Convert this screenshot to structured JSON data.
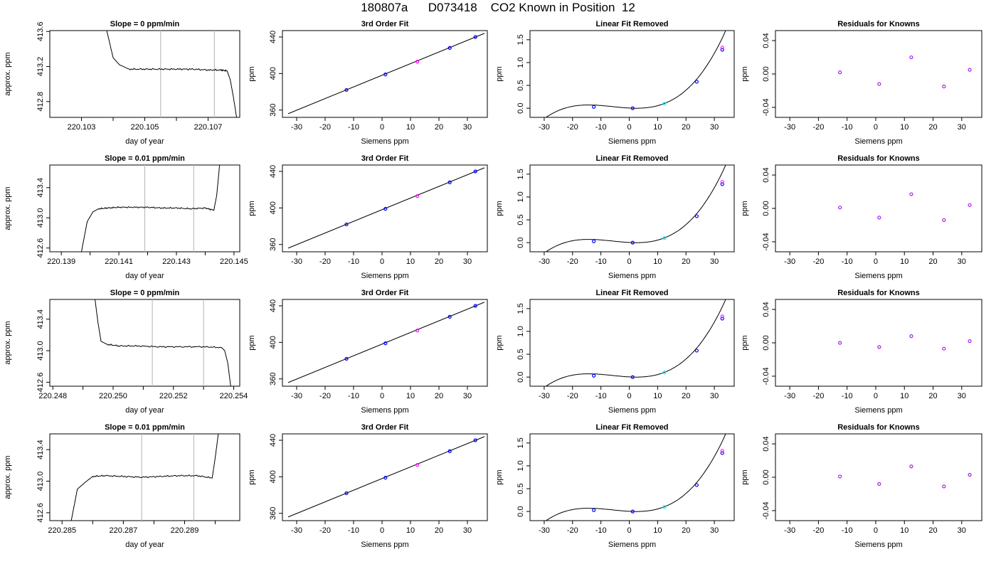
{
  "page": {
    "title": "180807a      D073418    CO2 Known in Position  12"
  },
  "colors": {
    "curve": "#000000",
    "guide": "#bebebe",
    "mark_blue": "#0000ff",
    "mark_magenta": "#ff00ff",
    "mark_cyan": "#00ffff",
    "mark_purple": "#a020f0"
  },
  "chart_data": [
    {
      "type": "line",
      "title": "Slope =  0  ppm/min",
      "xlabel": "day of year",
      "ylabel": "approx. ppm",
      "xlim": [
        220.102,
        220.108
      ],
      "ylim": [
        412.62,
        413.61
      ],
      "xticks": [
        "220.103",
        "220.105",
        "220.107"
      ],
      "xtick_minor": [
        220.104,
        220.106
      ],
      "yticks": [
        "412.8",
        "413.2",
        "413.6"
      ],
      "ytick_values": [
        412.8,
        413.2,
        413.6
      ],
      "guides": [
        220.1055,
        220.1072
      ],
      "x": [
        220.1038,
        220.104,
        220.1042,
        220.1045,
        220.105,
        220.1055,
        220.106,
        220.1065,
        220.107,
        220.1074,
        220.1076,
        220.1077,
        220.1078,
        220.1079
      ],
      "y": [
        413.61,
        413.3,
        413.22,
        413.17,
        413.17,
        413.17,
        413.17,
        413.17,
        413.16,
        413.16,
        413.15,
        413.05,
        412.85,
        412.62
      ]
    },
    {
      "type": "line",
      "title": "3rd Order Fit",
      "xlabel": "Siemens ppm",
      "ylabel": "ppm",
      "xlim": [
        -35,
        37
      ],
      "ylim": [
        352,
        447
      ],
      "xticks": [
        "-30",
        "-20",
        "-10",
        "0",
        "10",
        "20",
        "30"
      ],
      "xtick_values": [
        -30,
        -20,
        -10,
        0,
        10,
        20,
        30
      ],
      "yticks": [
        "360",
        "400",
        "440"
      ],
      "ytick_values": [
        360,
        400,
        440
      ],
      "fit_x": [
        -33,
        36
      ],
      "fit_y": [
        356,
        444
      ],
      "x": [
        -12.5,
        1.2,
        12.4,
        23.8,
        32.8
      ],
      "y": [
        382,
        399,
        413,
        428,
        440
      ]
    },
    {
      "type": "scatter",
      "title": "Linear Fit Removed",
      "xlabel": "Siemens ppm",
      "ylabel": "ppm",
      "xlim": [
        -35,
        37
      ],
      "ylim": [
        -0.2,
        1.7
      ],
      "xticks": [
        "-30",
        "-20",
        "-10",
        "0",
        "10",
        "20",
        "30"
      ],
      "xtick_values": [
        -30,
        -20,
        -10,
        0,
        10,
        20,
        30
      ],
      "yticks": [
        "0.0",
        "0.5",
        "1.0",
        "1.5"
      ],
      "ytick_values": [
        0,
        0.5,
        1.0,
        1.5
      ],
      "x": [
        -12.5,
        1.2,
        12.4,
        23.8,
        32.8
      ],
      "y": [
        0.03,
        0.0,
        0.1,
        0.58,
        1.28
      ]
    },
    {
      "type": "scatter",
      "title": "Residuals for Knowns",
      "xlabel": "Siemens ppm",
      "ylabel": "ppm",
      "xlim": [
        -35,
        37
      ],
      "ylim": [
        -0.052,
        0.052
      ],
      "xticks": [
        "-30",
        "-20",
        "-10",
        "0",
        "10",
        "20",
        "30"
      ],
      "xtick_values": [
        -30,
        -20,
        -10,
        0,
        10,
        20,
        30
      ],
      "yticks": [
        "-0.04",
        "0.00",
        "0.04"
      ],
      "ytick_values": [
        -0.04,
        0.0,
        0.04
      ],
      "x": [
        -12.5,
        1.2,
        12.4,
        23.8,
        32.8
      ],
      "y": [
        0.002,
        -0.012,
        0.02,
        -0.015,
        0.005
      ]
    },
    {
      "type": "line",
      "title": "Slope =  0.01  ppm/min",
      "xlabel": "day of year",
      "ylabel": "approx. ppm",
      "xlim": [
        220.1386,
        220.1452
      ],
      "ylim": [
        412.55,
        413.7
      ],
      "xticks": [
        "220.139",
        "220.141",
        "220.143",
        "220.145"
      ],
      "xtick_minor": [
        220.14,
        220.142,
        220.144
      ],
      "yticks": [
        "412.6",
        "413.0",
        "413.4"
      ],
      "ytick_values": [
        412.6,
        413.0,
        413.4
      ],
      "guides": [
        220.1419,
        220.1436
      ],
      "x": [
        220.1397,
        220.1399,
        220.1401,
        220.1403,
        220.1406,
        220.141,
        220.1415,
        220.142,
        220.1425,
        220.143,
        220.1435,
        220.144,
        220.1443,
        220.1444,
        220.1445
      ],
      "y": [
        412.55,
        412.95,
        413.08,
        413.12,
        413.13,
        413.14,
        413.14,
        413.14,
        413.13,
        413.13,
        413.12,
        413.13,
        413.1,
        413.3,
        413.7
      ]
    },
    {
      "type": "line",
      "title": "3rd Order Fit",
      "xlabel": "Siemens ppm",
      "ylabel": "ppm",
      "xlim": [
        -35,
        37
      ],
      "ylim": [
        352,
        447
      ],
      "xticks": [
        "-30",
        "-20",
        "-10",
        "0",
        "10",
        "20",
        "30"
      ],
      "xtick_values": [
        -30,
        -20,
        -10,
        0,
        10,
        20,
        30
      ],
      "yticks": [
        "360",
        "400",
        "440"
      ],
      "ytick_values": [
        360,
        400,
        440
      ],
      "fit_x": [
        -33,
        36
      ],
      "fit_y": [
        356,
        444
      ],
      "x": [
        -12.5,
        1.2,
        12.4,
        23.8,
        32.8
      ],
      "y": [
        382,
        399,
        413,
        428,
        440
      ]
    },
    {
      "type": "scatter",
      "title": "Linear Fit Removed",
      "xlabel": "Siemens ppm",
      "ylabel": "ppm",
      "xlim": [
        -35,
        37
      ],
      "ylim": [
        -0.2,
        1.7
      ],
      "xticks": [
        "-30",
        "-20",
        "-10",
        "0",
        "10",
        "20",
        "30"
      ],
      "xtick_values": [
        -30,
        -20,
        -10,
        0,
        10,
        20,
        30
      ],
      "yticks": [
        "0.0",
        "0.5",
        "1.0",
        "1.5"
      ],
      "ytick_values": [
        0,
        0.5,
        1.0,
        1.5
      ],
      "x": [
        -12.5,
        1.2,
        12.4,
        23.8,
        32.8
      ],
      "y": [
        0.03,
        0.0,
        0.1,
        0.58,
        1.28
      ]
    },
    {
      "type": "scatter",
      "title": "Residuals for Knowns",
      "xlabel": "Siemens ppm",
      "ylabel": "ppm",
      "xlim": [
        -35,
        37
      ],
      "ylim": [
        -0.052,
        0.052
      ],
      "xticks": [
        "-30",
        "-20",
        "-10",
        "0",
        "10",
        "20",
        "30"
      ],
      "xtick_values": [
        -30,
        -20,
        -10,
        0,
        10,
        20,
        30
      ],
      "yticks": [
        "-0.04",
        "0.00",
        "0.04"
      ],
      "ytick_values": [
        -0.04,
        0.0,
        0.04
      ],
      "x": [
        -12.5,
        1.2,
        12.4,
        23.8,
        32.8
      ],
      "y": [
        0.001,
        -0.011,
        0.017,
        -0.014,
        0.004
      ]
    },
    {
      "type": "line",
      "title": "Slope =  0  ppm/min",
      "xlabel": "day of year",
      "ylabel": "approx. ppm",
      "xlim": [
        220.2479,
        220.2542
      ],
      "ylim": [
        412.55,
        413.65
      ],
      "xticks": [
        "220.248",
        "220.250",
        "220.252",
        "220.254"
      ],
      "xtick_minor": [
        220.249,
        220.251,
        220.253
      ],
      "yticks": [
        "412.6",
        "413.0",
        "413.4"
      ],
      "ytick_values": [
        412.6,
        413.0,
        413.4
      ],
      "guides": [
        220.2513,
        220.253
      ],
      "x": [
        220.2494,
        220.2495,
        220.2496,
        220.2498,
        220.2502,
        220.2508,
        220.2515,
        220.2522,
        220.253,
        220.2536,
        220.2537,
        220.2538,
        220.2539
      ],
      "y": [
        413.65,
        413.35,
        413.12,
        413.08,
        413.06,
        413.06,
        413.05,
        413.05,
        413.05,
        413.04,
        413.0,
        412.85,
        412.55
      ]
    },
    {
      "type": "line",
      "title": "3rd Order Fit",
      "xlabel": "Siemens ppm",
      "ylabel": "ppm",
      "xlim": [
        -35,
        37
      ],
      "ylim": [
        352,
        447
      ],
      "xticks": [
        "-30",
        "-20",
        "-10",
        "0",
        "10",
        "20",
        "30"
      ],
      "xtick_values": [
        -30,
        -20,
        -10,
        0,
        10,
        20,
        30
      ],
      "yticks": [
        "360",
        "400",
        "440"
      ],
      "ytick_values": [
        360,
        400,
        440
      ],
      "fit_x": [
        -33,
        36
      ],
      "fit_y": [
        356,
        444
      ],
      "x": [
        -12.5,
        1.2,
        12.4,
        23.8,
        32.8
      ],
      "y": [
        382,
        399,
        413,
        428,
        440
      ]
    },
    {
      "type": "scatter",
      "title": "Linear Fit Removed",
      "xlabel": "Siemens ppm",
      "ylabel": "ppm",
      "xlim": [
        -35,
        37
      ],
      "ylim": [
        -0.2,
        1.7
      ],
      "xticks": [
        "-30",
        "-20",
        "-10",
        "0",
        "10",
        "20",
        "30"
      ],
      "xtick_values": [
        -30,
        -20,
        -10,
        0,
        10,
        20,
        30
      ],
      "yticks": [
        "0.0",
        "0.5",
        "1.0",
        "1.5"
      ],
      "ytick_values": [
        0,
        0.5,
        1.0,
        1.5
      ],
      "x": [
        -12.5,
        1.2,
        12.4,
        23.8,
        32.8
      ],
      "y": [
        0.03,
        0.0,
        0.1,
        0.58,
        1.28
      ]
    },
    {
      "type": "scatter",
      "title": "Residuals for Knowns",
      "xlabel": "Siemens ppm",
      "ylabel": "ppm",
      "xlim": [
        -35,
        37
      ],
      "ylim": [
        -0.052,
        0.052
      ],
      "xticks": [
        "-30",
        "-20",
        "-10",
        "0",
        "10",
        "20",
        "30"
      ],
      "xtick_values": [
        -30,
        -20,
        -10,
        0,
        10,
        20,
        30
      ],
      "yticks": [
        "-0.04",
        "0.00",
        "0.04"
      ],
      "ytick_values": [
        -0.04,
        0.0,
        0.04
      ],
      "x": [
        -12.5,
        1.2,
        12.4,
        23.8,
        32.8
      ],
      "y": [
        0.0,
        -0.005,
        0.008,
        -0.007,
        0.002
      ]
    },
    {
      "type": "line",
      "title": "Slope =  0.01  ppm/min",
      "xlabel": "day of year",
      "ylabel": "approx. ppm",
      "xlim": [
        220.2846,
        220.2908
      ],
      "ylim": [
        412.5,
        413.6
      ],
      "xticks": [
        "220.285",
        "220.287",
        "220.289"
      ],
      "xtick_minor": [
        220.286,
        220.288,
        220.29
      ],
      "yticks": [
        "412.6",
        "413.0",
        "413.4"
      ],
      "ytick_values": [
        412.6,
        413.0,
        413.4
      ],
      "guides": [
        220.2876,
        220.2893
      ],
      "x": [
        220.2853,
        220.2855,
        220.2858,
        220.286,
        220.2864,
        220.287,
        220.2876,
        220.2882,
        220.2888,
        220.2894,
        220.2899,
        220.29,
        220.2901
      ],
      "y": [
        412.5,
        412.9,
        413.0,
        413.06,
        413.07,
        413.06,
        413.05,
        413.06,
        413.07,
        413.07,
        413.04,
        413.3,
        413.6
      ]
    },
    {
      "type": "line",
      "title": "3rd Order Fit",
      "xlabel": "Siemens ppm",
      "ylabel": "ppm",
      "xlim": [
        -35,
        37
      ],
      "ylim": [
        352,
        447
      ],
      "xticks": [
        "-30",
        "-20",
        "-10",
        "0",
        "10",
        "20",
        "30"
      ],
      "xtick_values": [
        -30,
        -20,
        -10,
        0,
        10,
        20,
        30
      ],
      "yticks": [
        "360",
        "400",
        "440"
      ],
      "ytick_values": [
        360,
        400,
        440
      ],
      "fit_x": [
        -33,
        36
      ],
      "fit_y": [
        356,
        444
      ],
      "x": [
        -12.5,
        1.2,
        12.4,
        23.8,
        32.8
      ],
      "y": [
        382,
        399,
        413,
        428,
        440
      ]
    },
    {
      "type": "scatter",
      "title": "Linear Fit Removed",
      "xlabel": "Siemens ppm",
      "ylabel": "ppm",
      "xlim": [
        -35,
        37
      ],
      "ylim": [
        -0.2,
        1.7
      ],
      "xticks": [
        "-30",
        "-20",
        "-10",
        "0",
        "10",
        "20",
        "30"
      ],
      "xtick_values": [
        -30,
        -20,
        -10,
        0,
        10,
        20,
        30
      ],
      "yticks": [
        "0.0",
        "0.5",
        "1.0",
        "1.5"
      ],
      "ytick_values": [
        0,
        0.5,
        1.0,
        1.5
      ],
      "x": [
        -12.5,
        1.2,
        12.4,
        23.8,
        32.8
      ],
      "y": [
        0.03,
        0.0,
        0.1,
        0.58,
        1.28
      ]
    },
    {
      "type": "scatter",
      "title": "Residuals for Knowns",
      "xlabel": "Siemens ppm",
      "ylabel": "ppm",
      "xlim": [
        -35,
        37
      ],
      "ylim": [
        -0.052,
        0.052
      ],
      "xticks": [
        "-30",
        "-20",
        "-10",
        "0",
        "10",
        "20",
        "30"
      ],
      "xtick_values": [
        -30,
        -20,
        -10,
        0,
        10,
        20,
        30
      ],
      "yticks": [
        "-0.04",
        "0.00",
        "0.04"
      ],
      "ytick_values": [
        -0.04,
        0.0,
        0.04
      ],
      "x": [
        -12.5,
        1.2,
        12.4,
        23.8,
        32.8
      ],
      "y": [
        0.001,
        -0.008,
        0.013,
        -0.011,
        0.003
      ]
    }
  ]
}
